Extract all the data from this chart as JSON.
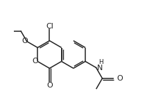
{
  "background_color": "#ffffff",
  "line_color": "#222222",
  "lw": 1.1,
  "dbo": 0.012,
  "figsize": [
    2.12,
    1.57
  ],
  "dpi": 100,
  "xlim": [
    0.0,
    1.0
  ],
  "ylim": [
    0.05,
    0.95
  ]
}
